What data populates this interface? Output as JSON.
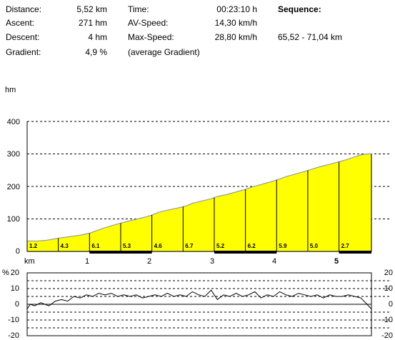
{
  "summary": {
    "distance": {
      "label": "Distance:",
      "value": "5,52 km"
    },
    "ascent": {
      "label": "Ascent:",
      "value": "271 hm"
    },
    "descent": {
      "label": "Descent:",
      "value": "4 hm"
    },
    "gradient": {
      "label": "Gradient:",
      "value": "4,9 %"
    },
    "time": {
      "label": "Time:",
      "value": "00:23:10 h"
    },
    "av_speed": {
      "label": "AV-Speed:",
      "value": "14,30 km/h"
    },
    "max_speed": {
      "label": "Max-Speed:",
      "value": "28,80 km/h"
    },
    "average_gradient_note": "(average Gradient)",
    "sequence": {
      "label": "Sequence:",
      "value": "65,52 - 71,04 km"
    }
  },
  "chart_data": [
    {
      "type": "area",
      "ylabel": "hm",
      "xlabel": "km",
      "xlim": [
        0,
        5.52
      ],
      "ylim": [
        0,
        400
      ],
      "y_ticks": [
        "0",
        "100",
        "200",
        "300",
        "400"
      ],
      "x_ticks": [
        "km",
        "1",
        "2",
        "3",
        "4",
        "5"
      ],
      "grid": "horizontal dashed",
      "fill_color": "#ffff00",
      "series": [
        {
          "x": [
            0,
            0.15,
            0.3,
            0.45,
            0.55,
            0.7,
            0.85,
            1.0,
            1.1,
            1.2,
            1.35,
            1.5,
            1.6,
            1.75,
            1.9,
            2.0,
            2.1,
            2.25,
            2.4,
            2.55,
            2.65,
            2.8,
            2.95,
            3.05,
            3.2,
            3.35,
            3.5,
            3.6,
            3.75,
            3.9,
            4.05,
            4.15,
            4.3,
            4.45,
            4.6,
            4.7,
            4.85,
            5.0,
            5.15,
            5.25,
            5.35,
            5.45,
            5.52
          ],
          "y": [
            32,
            32,
            34,
            39,
            42,
            46,
            50,
            56,
            63,
            70,
            79,
            87,
            92,
            99,
            106,
            112,
            120,
            127,
            133,
            140,
            148,
            155,
            162,
            169,
            175,
            183,
            191,
            198,
            206,
            214,
            223,
            230,
            238,
            246,
            255,
            261,
            268,
            276,
            284,
            291,
            297,
            300,
            300
          ]
        }
      ],
      "segments": [
        {
          "label": "1.2",
          "x0": 0.0,
          "x1": 0.5,
          "dark": false
        },
        {
          "label": "4.3",
          "x0": 0.5,
          "x1": 1.0,
          "dark": false
        },
        {
          "label": "6.1",
          "x0": 1.0,
          "x1": 1.5,
          "dark": true
        },
        {
          "label": "5.3",
          "x0": 1.5,
          "x1": 2.0,
          "dark": true
        },
        {
          "label": "4.6",
          "x0": 2.0,
          "x1": 2.5,
          "dark": false
        },
        {
          "label": "6.7",
          "x0": 2.5,
          "x1": 3.0,
          "dark": false
        },
        {
          "label": "5.2",
          "x0": 3.0,
          "x1": 3.5,
          "dark": true
        },
        {
          "label": "6.2",
          "x0": 3.5,
          "x1": 4.0,
          "dark": true
        },
        {
          "label": "5.9",
          "x0": 4.0,
          "x1": 4.5,
          "dark": false
        },
        {
          "label": "5.0",
          "x0": 4.5,
          "x1": 5.0,
          "dark": false
        },
        {
          "label": "2.7",
          "x0": 5.0,
          "x1": 5.52,
          "dark": true
        }
      ]
    },
    {
      "type": "line",
      "ylabel": "%",
      "xlim": [
        0,
        5.52
      ],
      "ylim": [
        -20,
        20
      ],
      "y_ticks": [
        "-20",
        "-10",
        "0",
        "10",
        "20"
      ],
      "grid": "horizontal dashed",
      "line_color": "#000000",
      "series": [
        {
          "x": [
            0,
            0.05,
            0.12,
            0.22,
            0.35,
            0.45,
            0.55,
            0.65,
            0.75,
            0.85,
            0.95,
            1.05,
            1.15,
            1.25,
            1.35,
            1.45,
            1.55,
            1.65,
            1.75,
            1.85,
            1.95,
            2.05,
            2.15,
            2.25,
            2.35,
            2.45,
            2.55,
            2.65,
            2.75,
            2.85,
            2.95,
            3.05,
            3.15,
            3.25,
            3.35,
            3.45,
            3.55,
            3.65,
            3.75,
            3.85,
            3.95,
            4.05,
            4.15,
            4.25,
            4.35,
            4.45,
            4.55,
            4.65,
            4.75,
            4.85,
            4.95,
            5.05,
            5.15,
            5.25,
            5.35,
            5.45,
            5.52
          ],
          "y": [
            -3,
            0,
            -1,
            1,
            -1,
            2,
            3,
            2,
            5,
            4,
            6,
            5,
            7,
            6,
            7,
            5,
            6,
            5,
            6,
            4,
            5,
            6,
            5,
            7,
            5,
            6,
            5,
            8,
            6,
            5,
            9,
            3,
            6,
            5,
            7,
            5,
            6,
            8,
            4,
            6,
            5,
            8,
            6,
            5,
            7,
            6,
            5,
            6,
            4,
            6,
            5,
            5,
            6,
            5,
            4,
            0,
            -3
          ]
        }
      ]
    }
  ]
}
